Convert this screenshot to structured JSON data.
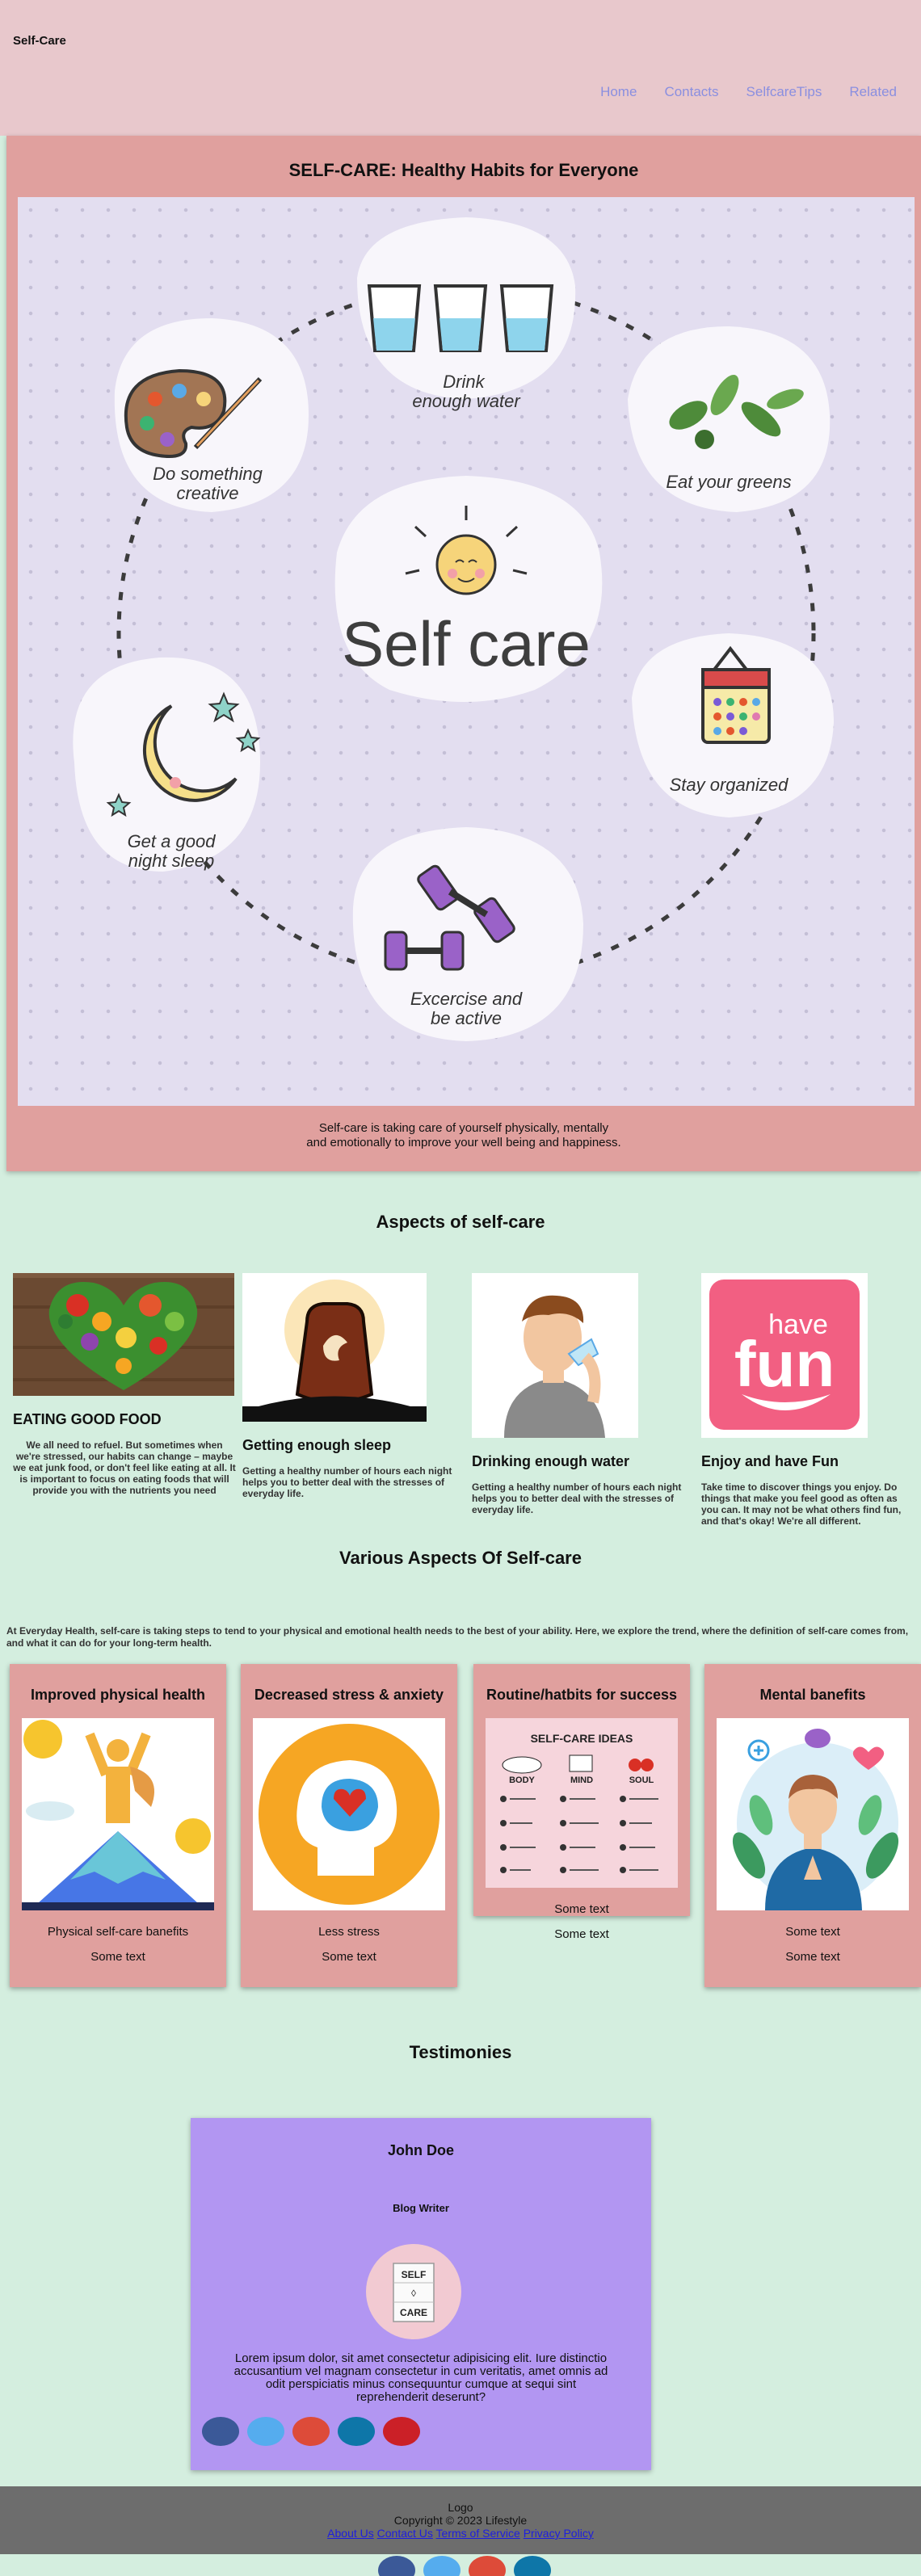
{
  "header": {
    "brand": "Self-Care",
    "nav": [
      "Home",
      "Contacts",
      "SelfcareTips",
      "Related"
    ]
  },
  "hero": {
    "title": "SELF-CARE: Healthy Habits for Everyone",
    "art": {
      "center": "Self care",
      "items": [
        "Drink\nenough water",
        "Eat your greens",
        "Stay organized",
        "Excercise and\nbe active",
        "Get a good\nnight sleep",
        "Do something\ncreative"
      ]
    },
    "caption_line1": "Self-care is taking care of yourself physically, mentally",
    "caption_line2": "and emotionally to improve your well being and happiness."
  },
  "aspects": {
    "title": "Aspects of self-care",
    "items": [
      {
        "heading": "EATING GOOD FOOD",
        "text": "We all need to refuel. But sometimes when we're stressed, our habits can change – maybe we eat junk food, or don't feel like eating at all. It is important to focus on eating foods that will provide you with the nutrients you need"
      },
      {
        "heading": "Getting enough sleep",
        "text": "Getting a healthy number of hours each night helps you to better deal with the stresses of everyday life."
      },
      {
        "heading": "Drinking enough water",
        "text": "Getting a healthy number of hours each night helps you to better deal with the stresses of everyday life."
      },
      {
        "heading": "Enjoy and have Fun",
        "text": "Take time to discover things you enjoy. Do things that make you feel good as often as you can. It may not be what others find fun, and that's okay! We're all different."
      }
    ],
    "fun_word_1": "have",
    "fun_word_2": "fun"
  },
  "various": {
    "title": "Various Aspects Of Self-care",
    "intro": "At Everyday Health, self-care is taking steps to tend to your physical and emotional health needs to the best of your ability. Here, we explore the trend, where the definition of self-care comes from, and what it can do for your long-term health.",
    "cards": [
      {
        "title": "Improved physical health",
        "t1": "Physical self-care banefits",
        "t2": "Some text"
      },
      {
        "title": "Decreased stress & anxiety",
        "t1": "Less stress",
        "t2": "Some text"
      },
      {
        "title": "Routine/hatbits for success",
        "t1": "Some text",
        "t2": "Some text"
      },
      {
        "title": "Mental banefits",
        "t1": "Some text",
        "t2": "Some text"
      }
    ],
    "ideas": {
      "title": "SELF-CARE IDEAS",
      "cols": [
        "BODY",
        "MIND",
        "SOUL"
      ]
    }
  },
  "testimonies": {
    "title": "Testimonies",
    "name": "John Doe",
    "role": "Blog Writer",
    "avatar_text": [
      "SELF",
      "◊",
      "CARE"
    ],
    "quote": "Lorem ipsum dolor, sit amet consectetur adipisicing elit. Iure distinctio accusantium vel magnam consectetur in cum veritatis, amet omnis ad odit perspiciatis minus consequuntur cumque at sequi sint reprehenderit deserunt?"
  },
  "footer": {
    "logo_alt": "Logo",
    "copyright": "Copyright © 2023 Lifestyle",
    "links": [
      "About Us",
      "Contact Us",
      "Terms of Service",
      "Privacy Policy"
    ]
  },
  "colors": {
    "social": [
      "#3b5998",
      "#55acee",
      "#dd4b39",
      "#0e76a8",
      "#cb2027"
    ]
  }
}
